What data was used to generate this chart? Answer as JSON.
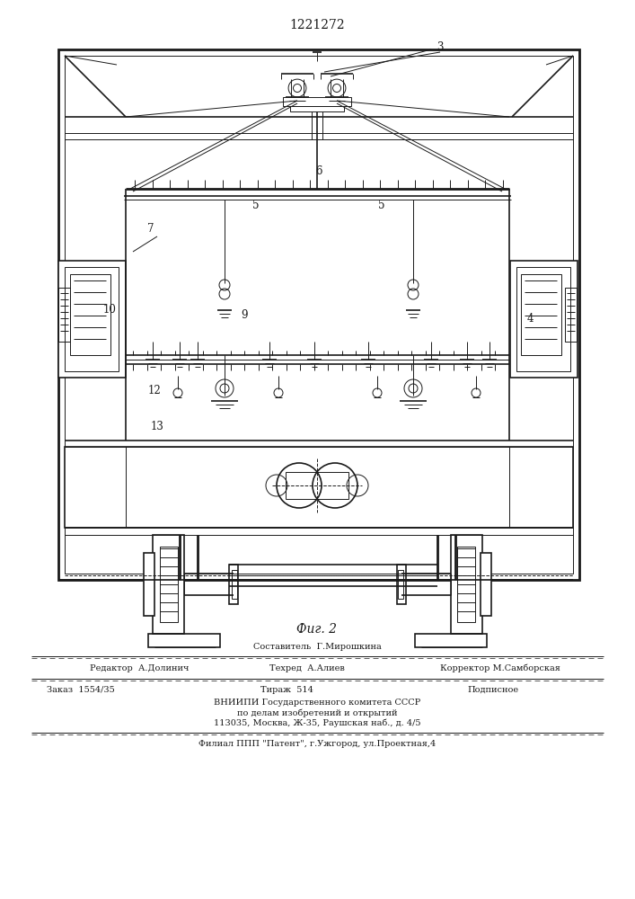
{
  "title": "1221272",
  "fig_caption": "Фиг. 2",
  "bg_color": "#ffffff",
  "line_color": "#1a1a1a",
  "footer": {
    "col1_r1": "Редактор  А.Долинич",
    "col2_r0": "Составитель  Г.Мирошкина",
    "col2_r1": "Техред  А.Алиев",
    "col3_r1": "Корректор М.Самборская",
    "order": "Заказ  1554/35",
    "tirazh": "Тираж  514",
    "podp": "Подписное",
    "vniipи": "ВНИИПИ Государственного комитета СССР",
    "po_delam": "по делам изобретений и открытий",
    "address": "113035, Москва, Ж-35, Раушская наб., д. 4/5",
    "filial": "Филиал ППП \"Патент\", г.Ужгород, ул.Проектная,4"
  }
}
